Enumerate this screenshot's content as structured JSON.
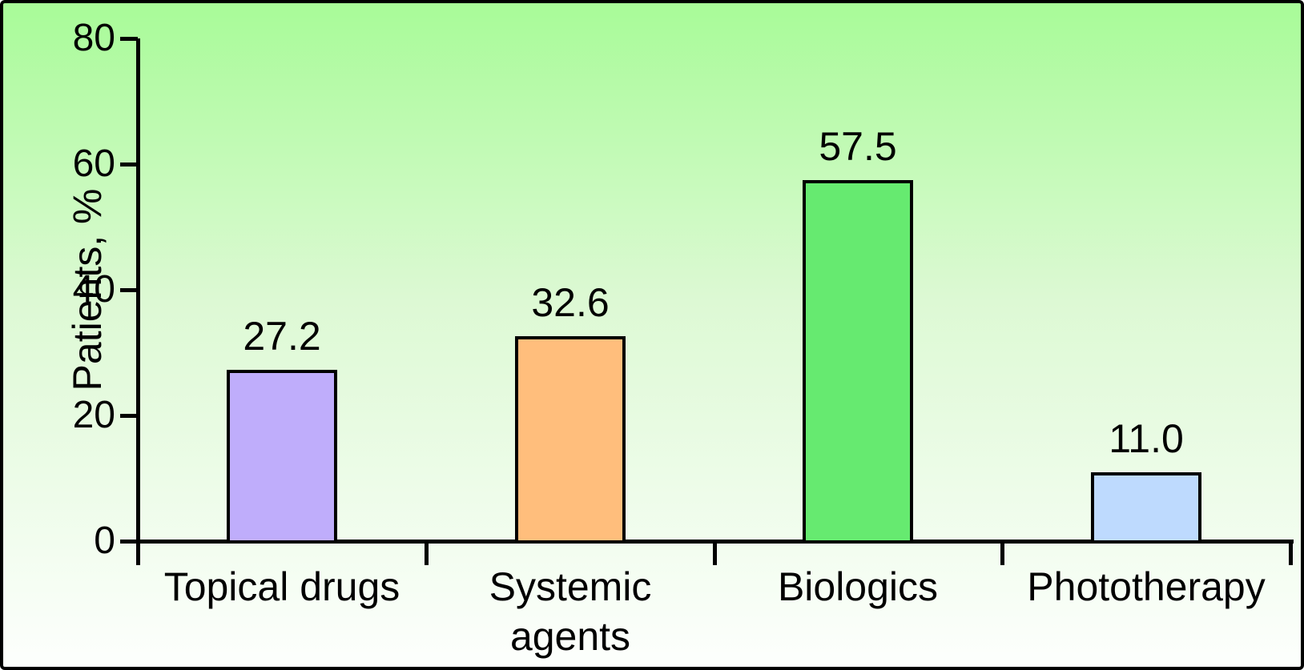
{
  "figure": {
    "border_color": "#000000",
    "background_top_color": "#a8fb98",
    "background_bottom_color": "#fdfffd",
    "text_color": "#000000"
  },
  "chart_data": {
    "type": "bar",
    "title": "",
    "xlabel": "",
    "ylabel": "Patients, %",
    "ylim": [
      0,
      80
    ],
    "yticks": [
      0,
      20,
      40,
      60,
      80
    ],
    "grid": false,
    "legend": null,
    "categories": [
      "Topical drugs",
      "Systemic agents",
      "Biologics",
      "Phototherapy"
    ],
    "category_label_lines": [
      [
        "Topical drugs"
      ],
      [
        "Systemic",
        "agents"
      ],
      [
        "Biologics"
      ],
      [
        "Phototherapy"
      ]
    ],
    "values": [
      27.2,
      32.6,
      57.5,
      11.0
    ],
    "value_labels": [
      "27.2",
      "32.6",
      "57.5",
      "11.0"
    ],
    "bar_colors": [
      "#bfadfb",
      "#ffbe7c",
      "#66ea70",
      "#bedafe"
    ],
    "bar_border_color": "#000000"
  }
}
